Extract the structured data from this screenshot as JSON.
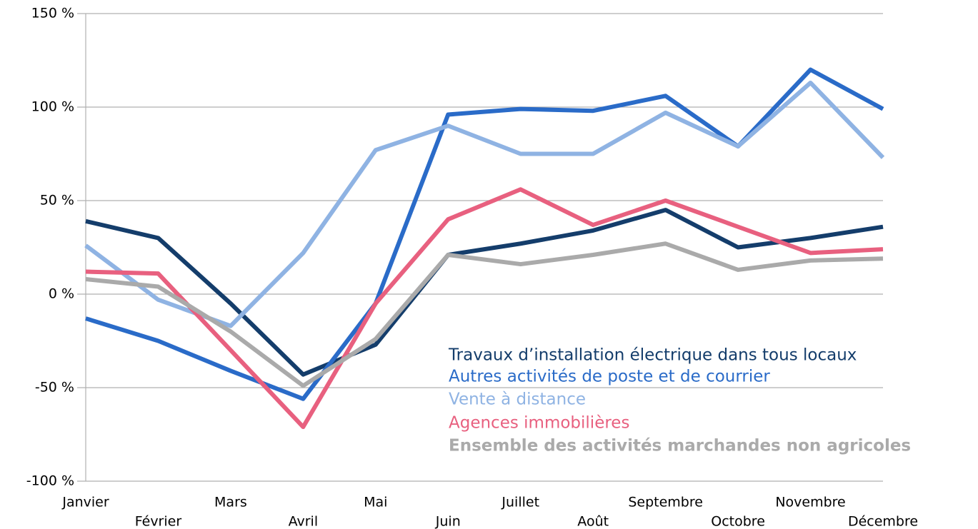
{
  "chart_data": {
    "type": "line",
    "categories": [
      "Janvier",
      "Février",
      "Mars",
      "Avril",
      "Mai",
      "Juin",
      "Juillet",
      "Août",
      "Septembre",
      "Octobre",
      "Novembre",
      "Décembre"
    ],
    "series": [
      {
        "name": "Travaux d’installation électrique dans tous locaux",
        "color": "#143d6b",
        "values": [
          39,
          30,
          -5,
          -43,
          -27,
          21,
          27,
          34,
          45,
          25,
          30,
          36
        ]
      },
      {
        "name": "Autres activités de poste et de courrier",
        "color": "#2a6bc8",
        "values": [
          -13,
          -25,
          -41,
          -56,
          -5,
          96,
          99,
          98,
          106,
          79,
          120,
          99
        ]
      },
      {
        "name": "Vente à distance",
        "color": "#8fb3e3",
        "values": [
          26,
          -3,
          -17,
          22,
          77,
          90,
          75,
          75,
          97,
          79,
          113,
          73
        ]
      },
      {
        "name": "Agences immobilières",
        "color": "#e8607f",
        "values": [
          12,
          11,
          -30,
          -71,
          -5,
          40,
          56,
          37,
          50,
          36,
          22,
          24
        ]
      },
      {
        "name": "Ensemble des activités marchandes non agricoles",
        "color": "#aaaaaa",
        "values": [
          8,
          4,
          -20,
          -49,
          -24,
          21,
          16,
          21,
          27,
          13,
          18,
          19
        ]
      }
    ],
    "ylim": [
      -100,
      150
    ],
    "yticks": [
      {
        "value": -100,
        "label": "-100 %"
      },
      {
        "value": -50,
        "label": "-50 %"
      },
      {
        "value": 0,
        "label": "0 %"
      },
      {
        "value": 50,
        "label": "50 %"
      },
      {
        "value": 100,
        "label": "100 %"
      },
      {
        "value": 150,
        "label": "150 %"
      }
    ],
    "grid": true,
    "legend": "lower right"
  }
}
